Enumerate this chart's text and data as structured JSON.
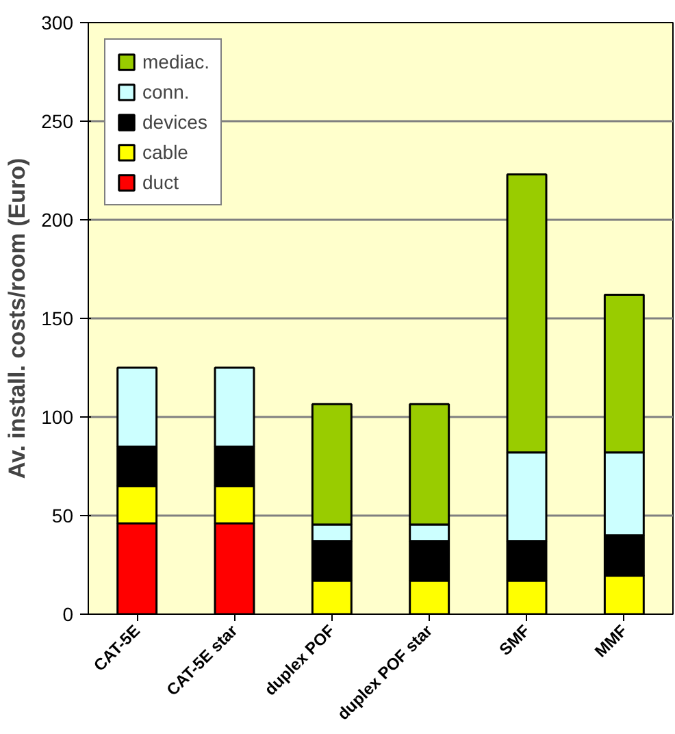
{
  "chart_data": {
    "type": "bar",
    "stacked": true,
    "ylabel": "Av. install. costs/room (Euro)",
    "categories": [
      "CAT-5E",
      "CAT-5E star",
      "duplex POF",
      "duplex POF star",
      "SMF",
      "MMF"
    ],
    "series": [
      {
        "name": "duct",
        "color": "#ff0000",
        "values": [
          46,
          46,
          null,
          null,
          null,
          null
        ]
      },
      {
        "name": "cable",
        "color": "#ffff00",
        "values": [
          19,
          19,
          17,
          17,
          17,
          19.5
        ]
      },
      {
        "name": "devices",
        "color": "#000000",
        "values": [
          20,
          20,
          20,
          20,
          20,
          20.5
        ]
      },
      {
        "name": "conn.",
        "color": "#ccffff",
        "values": [
          40,
          40,
          8.5,
          8.5,
          45,
          42
        ]
      },
      {
        "name": "mediac.",
        "color": "#99cc00",
        "values": [
          null,
          null,
          61,
          61,
          141,
          80
        ]
      }
    ],
    "ylim": [
      0,
      300
    ],
    "yticks": [
      0,
      50,
      100,
      150,
      200,
      250,
      300
    ],
    "grid": "y",
    "legend": "top left"
  }
}
